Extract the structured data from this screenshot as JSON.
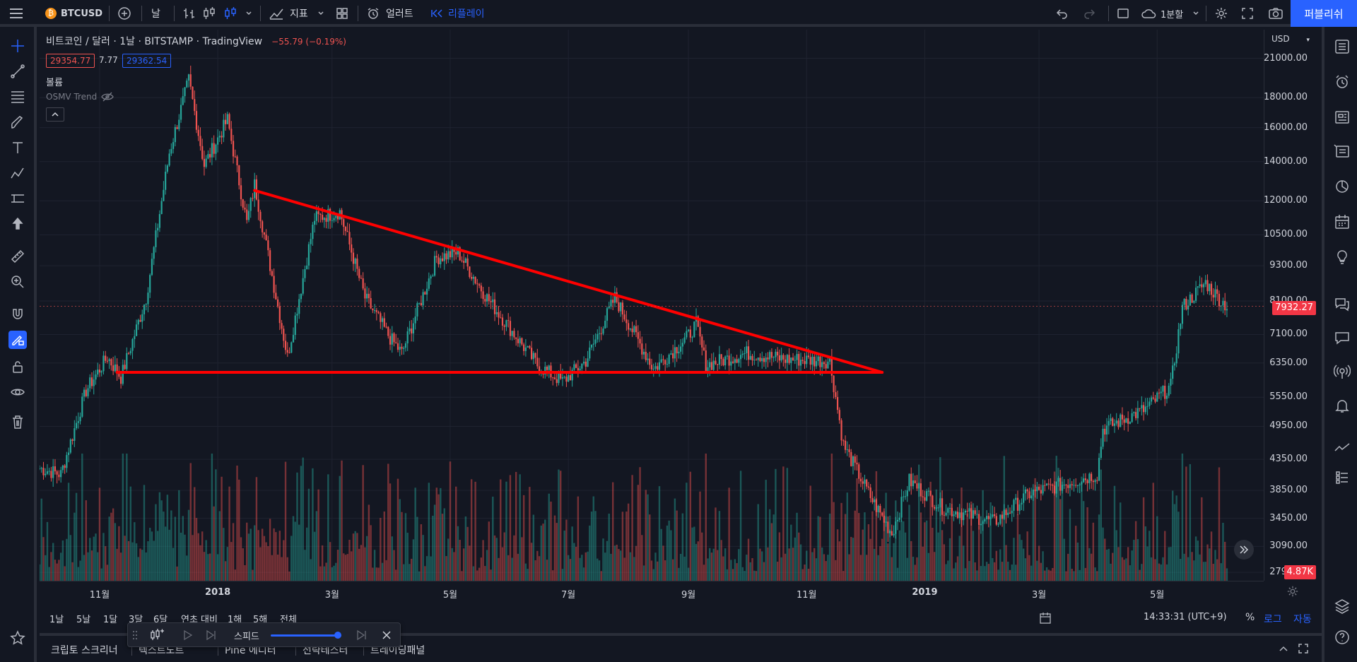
{
  "topbar": {
    "symbol": "BTCUSD",
    "interval": "날",
    "indicators_label": "지표",
    "alert_label": "얼러트",
    "replay_label": "리플레이",
    "layout_label": "1분할",
    "publish_label": "퍼블리쉬"
  },
  "legend": {
    "title": "비트코인 / 달러 · 1날 · BITSTAMP · TradingView",
    "change": "−55.79 (−0.19%)",
    "bid": "29354.77",
    "spread": "7.77",
    "ask": "29362.54",
    "volume_label": "볼륨",
    "indicator_label": "OSMV Trend"
  },
  "price_axis": {
    "currency": "USD",
    "ticks": [
      "21000.00",
      "18000.00",
      "16000.00",
      "14000.00",
      "12000.00",
      "10500.00",
      "9300.00",
      "8100.00",
      "7100.00",
      "6350.00",
      "5550.00",
      "4950.00",
      "4350.00",
      "3850.00",
      "3450.00",
      "3090.00",
      "2790.00"
    ],
    "last_price": "7932.27",
    "last_volume": "4.87K"
  },
  "time_axis": {
    "ticks": [
      {
        "label": "11월",
        "bold": false
      },
      {
        "label": "2018",
        "bold": true
      },
      {
        "label": "3월",
        "bold": false
      },
      {
        "label": "5월",
        "bold": false
      },
      {
        "label": "7월",
        "bold": false
      },
      {
        "label": "9월",
        "bold": false
      },
      {
        "label": "11월",
        "bold": false
      },
      {
        "label": "2019",
        "bold": true
      },
      {
        "label": "3월",
        "bold": false
      },
      {
        "label": "5월",
        "bold": false
      }
    ]
  },
  "range_bar": {
    "ranges": [
      "1날",
      "5날",
      "1달",
      "3달",
      "6달",
      "연초 대비",
      "1해",
      "5해",
      "전체"
    ],
    "clock": "14:33:31 (UTC+9)",
    "percent": "%",
    "log": "로그",
    "auto": "자동"
  },
  "bottom_panel": {
    "tabs": [
      "크립토 스크리너",
      "텍스트노트",
      "Pine 에디터",
      "전략테스터",
      "트레이딩패널"
    ]
  },
  "replay": {
    "speed_label": "스피드",
    "speed": 0.95
  },
  "colors": {
    "up": "#26a69a",
    "down": "#ef5350",
    "accent": "#2962ff",
    "drawing": "#ff0000"
  },
  "chart_data": {
    "type": "candlestick",
    "symbol": "BTCUSD",
    "exchange": "BITSTAMP",
    "interval": "1D",
    "scale": "log",
    "y_ticks": [
      21000,
      18000,
      16000,
      14000,
      12000,
      10500,
      9300,
      8100,
      7100,
      6350,
      5550,
      4950,
      4350,
      3850,
      3450,
      3090,
      2790
    ],
    "ylim": [
      2700,
      23500
    ],
    "x_range": [
      "2017-10-01",
      "2019-06-25"
    ],
    "last_price": 7932.27,
    "path_points": [
      [
        "2017-10-01",
        4200
      ],
      [
        "2017-10-12",
        4100
      ],
      [
        "2017-10-25",
        5700
      ],
      [
        "2017-11-05",
        6500
      ],
      [
        "2017-11-12",
        6000
      ],
      [
        "2017-11-25",
        8200
      ],
      [
        "2017-12-07",
        14500
      ],
      [
        "2017-12-17",
        19300
      ],
      [
        "2017-12-25",
        13800
      ],
      [
        "2018-01-06",
        16500
      ],
      [
        "2018-01-16",
        11000
      ],
      [
        "2018-01-20",
        12800
      ],
      [
        "2018-02-06",
        6500
      ],
      [
        "2018-02-20",
        11200
      ],
      [
        "2018-03-05",
        11500
      ],
      [
        "2018-03-18",
        8200
      ],
      [
        "2018-03-31",
        7000
      ],
      [
        "2018-04-06",
        6600
      ],
      [
        "2018-04-24",
        9600
      ],
      [
        "2018-05-05",
        9800
      ],
      [
        "2018-05-20",
        8200
      ],
      [
        "2018-06-15",
        6300
      ],
      [
        "2018-06-28",
        5900
      ],
      [
        "2018-07-10",
        6400
      ],
      [
        "2018-07-25",
        8200
      ],
      [
        "2018-08-14",
        6200
      ],
      [
        "2018-08-31",
        7000
      ],
      [
        "2018-09-05",
        7400
      ],
      [
        "2018-09-10",
        6300
      ],
      [
        "2018-10-01",
        6600
      ],
      [
        "2018-10-20",
        6450
      ],
      [
        "2018-11-13",
        6400
      ],
      [
        "2018-11-20",
        4600
      ],
      [
        "2018-12-05",
        3700
      ],
      [
        "2018-12-15",
        3250
      ],
      [
        "2018-12-24",
        4000
      ],
      [
        "2019-01-10",
        3600
      ],
      [
        "2019-02-06",
        3400
      ],
      [
        "2019-02-24",
        3800
      ],
      [
        "2019-03-31",
        4100
      ],
      [
        "2019-04-03",
        4900
      ],
      [
        "2019-04-25",
        5300
      ],
      [
        "2019-05-08",
        5800
      ],
      [
        "2019-05-14",
        7900
      ],
      [
        "2019-05-26",
        8700
      ],
      [
        "2019-06-03",
        8100
      ],
      [
        "2019-06-06",
        7932
      ]
    ],
    "trendlines": [
      {
        "from": [
          "2018-01-20",
          12500
        ],
        "to": [
          "2018-12-10",
          6120
        ]
      },
      {
        "from": [
          "2017-11-10",
          6120
        ],
        "to": [
          "2018-12-10",
          6120
        ]
      }
    ]
  }
}
